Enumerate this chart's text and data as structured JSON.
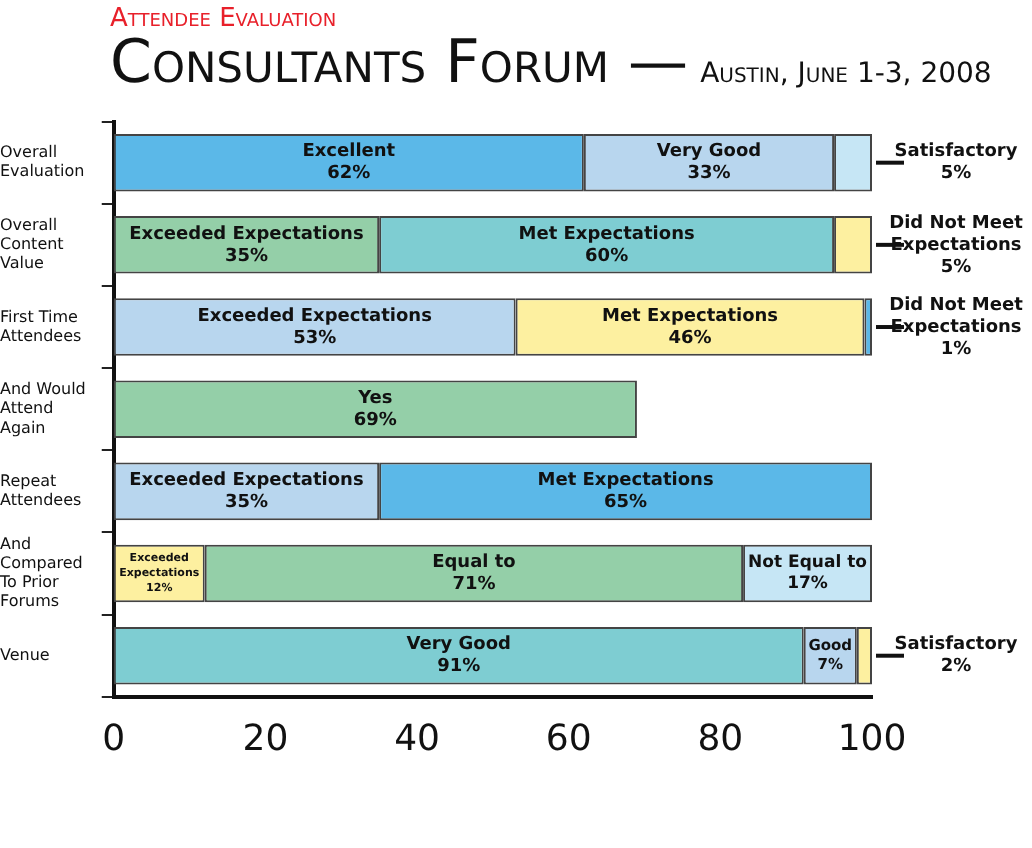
{
  "chart_data": {
    "type": "bar",
    "orientation": "horizontal",
    "stacked": true,
    "title": "Consultants Forum —",
    "subtitle": "Austin, June 1-3, 2008",
    "annotations": [
      "Attendee Evaluation"
    ],
    "categories": [
      "Overall\nEvaluation",
      "Overall\nContent\nValue",
      "First Time\nAttendees",
      "And Would\nAttend\nAgain",
      "Repeat\nAttendees",
      "And\nCompared\nTo Prior\nForums",
      "Venue"
    ],
    "series": [
      {
        "values": [
          62,
          35,
          53,
          69,
          35,
          12,
          91
        ],
        "colors": [
          "#5bb8e8",
          "#94cfa8",
          "#b8d6ee",
          "#94cfa8",
          "#b8d6ee",
          "#fdf0a0",
          "#7ecdd2"
        ],
        "value_labels": [
          "Excellent\n62%",
          "Exceeded Expectations\n35%",
          "Exceeded Expectations\n53%",
          "Yes\n69%",
          "Exceeded Expectations\n35%",
          "Exceeded\nExpectations\n12%",
          "Very Good\n91%"
        ]
      },
      {
        "values": [
          33,
          60,
          46,
          null,
          65,
          71,
          7
        ],
        "colors": [
          "#b8d6ee",
          "#7ecdd2",
          "#fdf0a0",
          "#ffffff",
          "#5bb8e8",
          "#94cfa8",
          "#b8d6ee"
        ],
        "value_labels": [
          "Very Good\n33%",
          "Met Expectations\n60%",
          "Met Expectations\n46%",
          null,
          "Met Expectations\n65%",
          "Equal to\n71%",
          "Good\n7%"
        ]
      },
      {
        "values": [
          5,
          5,
          1,
          null,
          null,
          17,
          2
        ],
        "colors": [
          "#c6e6f5",
          "#fdf0a0",
          "#5bb8e8",
          "#ffffff",
          "#ffffff",
          "#c6e6f5",
          "#fdf0a0"
        ],
        "value_labels": [
          "Satisfactory\n5%",
          "Did Not Meet\nExpectations\n5%",
          "Did Not Meet\nExpectations\n1%",
          null,
          null,
          "Not Equal to\n17%",
          "Satisfactory\n2%"
        ]
      }
    ],
    "xlim": [
      0,
      100
    ],
    "xticks": [
      0,
      20,
      40,
      60,
      80,
      100
    ],
    "grid": false,
    "legend": false
  }
}
